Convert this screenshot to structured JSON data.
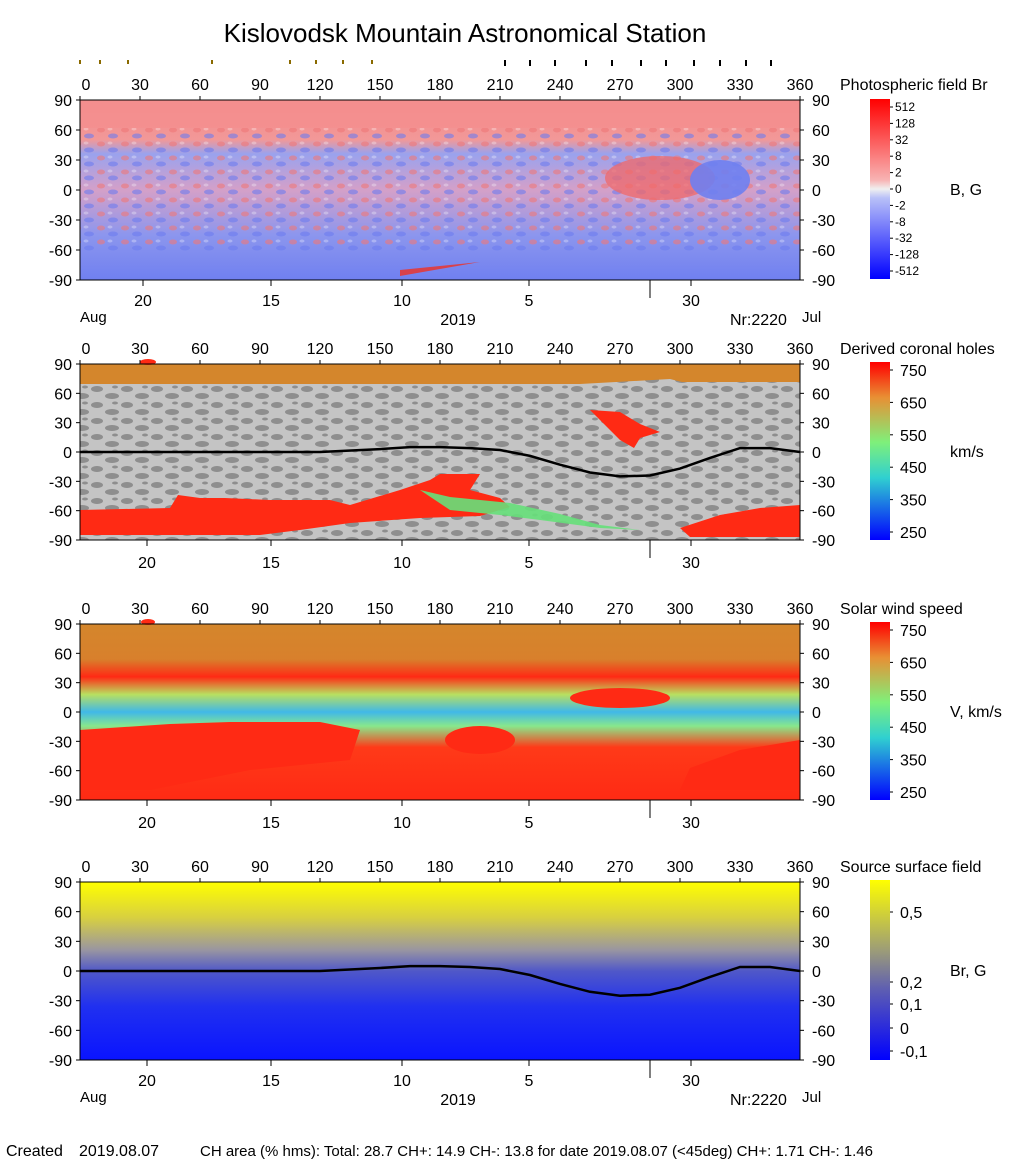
{
  "title": "Kislovodsk Mountain Astronomical Station",
  "footer": {
    "created_label": "Created",
    "created_date": "2019.08.07",
    "stats": "CH area (% hms): Total: 28.7 CH+: 14.9   CH-: 13.8 for date 2019.08.07 (<45deg) CH+: 1.71    CH-: 1.46"
  },
  "colors": {
    "field_positive": "#f06868",
    "field_negative": "#6f7ff0",
    "coronal_hole_fill": "#ff2a14",
    "polar_fill": "#d4862c",
    "map_background": "#c6c6c6",
    "neutral_line": "#000000",
    "source_surface_top": "#ffff00",
    "source_surface_bottom": "#0a14ff"
  },
  "chart_data": [
    {
      "type": "heatmap",
      "title": "Photospheric field Br",
      "colorbar_label": "B, G",
      "colorbar_ticks": [
        "512",
        "128",
        "32",
        "8",
        "2",
        "0",
        "-2",
        "-8",
        "-32",
        "-128",
        "-512"
      ],
      "x_ticks": [
        "0",
        "30",
        "60",
        "90",
        "120",
        "150",
        "180",
        "210",
        "240",
        "270",
        "300",
        "330",
        "360"
      ],
      "y_ticks": [
        "90",
        "60",
        "30",
        "0",
        "-30",
        "-60",
        "-90"
      ],
      "date_ticks": [
        "20",
        "15",
        "10",
        "5",
        "30"
      ],
      "date_left": "Aug",
      "date_right": "Jul",
      "year": "2019",
      "rotation": "Nr:2220",
      "xlim": [
        0,
        360
      ],
      "ylim": [
        -90,
        90
      ]
    },
    {
      "type": "heatmap",
      "title": "Derived coronal holes",
      "colorbar_label": "km/s",
      "colorbar_ticks": [
        "750",
        "650",
        "550",
        "450",
        "350",
        "250"
      ],
      "x_ticks": [
        "0",
        "30",
        "60",
        "90",
        "120",
        "150",
        "180",
        "210",
        "240",
        "270",
        "300",
        "330",
        "360"
      ],
      "y_ticks": [
        "90",
        "60",
        "30",
        "0",
        "-30",
        "-60",
        "-90"
      ],
      "date_ticks": [
        "20",
        "15",
        "10",
        "5",
        "30"
      ],
      "xlim": [
        0,
        360
      ],
      "ylim": [
        -90,
        90
      ],
      "neutral_line": {
        "x": [
          0,
          30,
          60,
          90,
          120,
          150,
          165,
          180,
          195,
          210,
          225,
          240,
          255,
          270,
          285,
          300,
          315,
          330,
          345,
          360
        ],
        "y": [
          0,
          0,
          0,
          0,
          0,
          3,
          5,
          5,
          4,
          2,
          -4,
          -13,
          -21,
          -25,
          -24,
          -17,
          -6,
          4,
          4,
          0
        ]
      }
    },
    {
      "type": "heatmap",
      "title": "Solar wind speed",
      "colorbar_label": "V, km/s",
      "colorbar_ticks": [
        "750",
        "650",
        "550",
        "450",
        "350",
        "250"
      ],
      "x_ticks": [
        "0",
        "30",
        "60",
        "90",
        "120",
        "150",
        "180",
        "210",
        "240",
        "270",
        "300",
        "330",
        "360"
      ],
      "y_ticks": [
        "90",
        "60",
        "30",
        "0",
        "-30",
        "-60",
        "-90"
      ],
      "date_ticks": [
        "20",
        "15",
        "10",
        "5",
        "30"
      ],
      "xlim": [
        0,
        360
      ],
      "ylim": [
        -90,
        90
      ]
    },
    {
      "type": "heatmap",
      "title": "Source surface field",
      "colorbar_label": "Br, G",
      "colorbar_ticks": [
        "0,5",
        "0,2",
        "0,1",
        "0",
        "-0,1"
      ],
      "x_ticks": [
        "0",
        "30",
        "60",
        "90",
        "120",
        "150",
        "180",
        "210",
        "240",
        "270",
        "300",
        "330",
        "360"
      ],
      "y_ticks": [
        "90",
        "60",
        "30",
        "0",
        "-30",
        "-60",
        "-90"
      ],
      "date_ticks": [
        "20",
        "15",
        "10",
        "5",
        "30"
      ],
      "date_left": "Aug",
      "date_right": "Jul",
      "year": "2019",
      "rotation": "Nr:2220",
      "xlim": [
        0,
        360
      ],
      "ylim": [
        -90,
        90
      ],
      "neutral_line": {
        "x": [
          0,
          30,
          60,
          90,
          120,
          150,
          165,
          180,
          195,
          210,
          225,
          240,
          255,
          270,
          285,
          300,
          315,
          330,
          345,
          360
        ],
        "y": [
          0,
          0,
          0,
          0,
          0,
          3,
          5,
          5,
          4,
          2,
          -4,
          -13,
          -21,
          -25,
          -24,
          -17,
          -6,
          4,
          4,
          0
        ]
      }
    }
  ]
}
